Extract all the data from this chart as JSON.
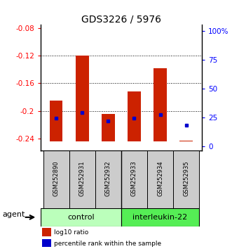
{
  "title": "GDS3226 / 5976",
  "samples": [
    "GSM252890",
    "GSM252931",
    "GSM252932",
    "GSM252933",
    "GSM252934",
    "GSM252935"
  ],
  "log10_ratio": [
    -0.185,
    -0.12,
    -0.205,
    -0.172,
    -0.138,
    -0.243
  ],
  "bar_zero": -0.245,
  "percentile_rank": [
    24,
    29,
    22,
    24,
    27,
    18
  ],
  "ylim_left": [
    -0.258,
    -0.075
  ],
  "ylim_right": [
    -4,
    105
  ],
  "yticks_left": [
    -0.08,
    -0.12,
    -0.16,
    -0.2,
    -0.24
  ],
  "yticks_right": [
    0,
    25,
    50,
    75,
    100
  ],
  "ytick_labels_right": [
    "0",
    "25",
    "50",
    "75",
    "100%"
  ],
  "bar_color": "#cc2200",
  "dot_color": "#0000cc",
  "bar_width": 0.5,
  "legend_items": [
    "log10 ratio",
    "percentile rank within the sample"
  ],
  "ctrl_color": "#bbffbb",
  "il_color": "#55ee55"
}
